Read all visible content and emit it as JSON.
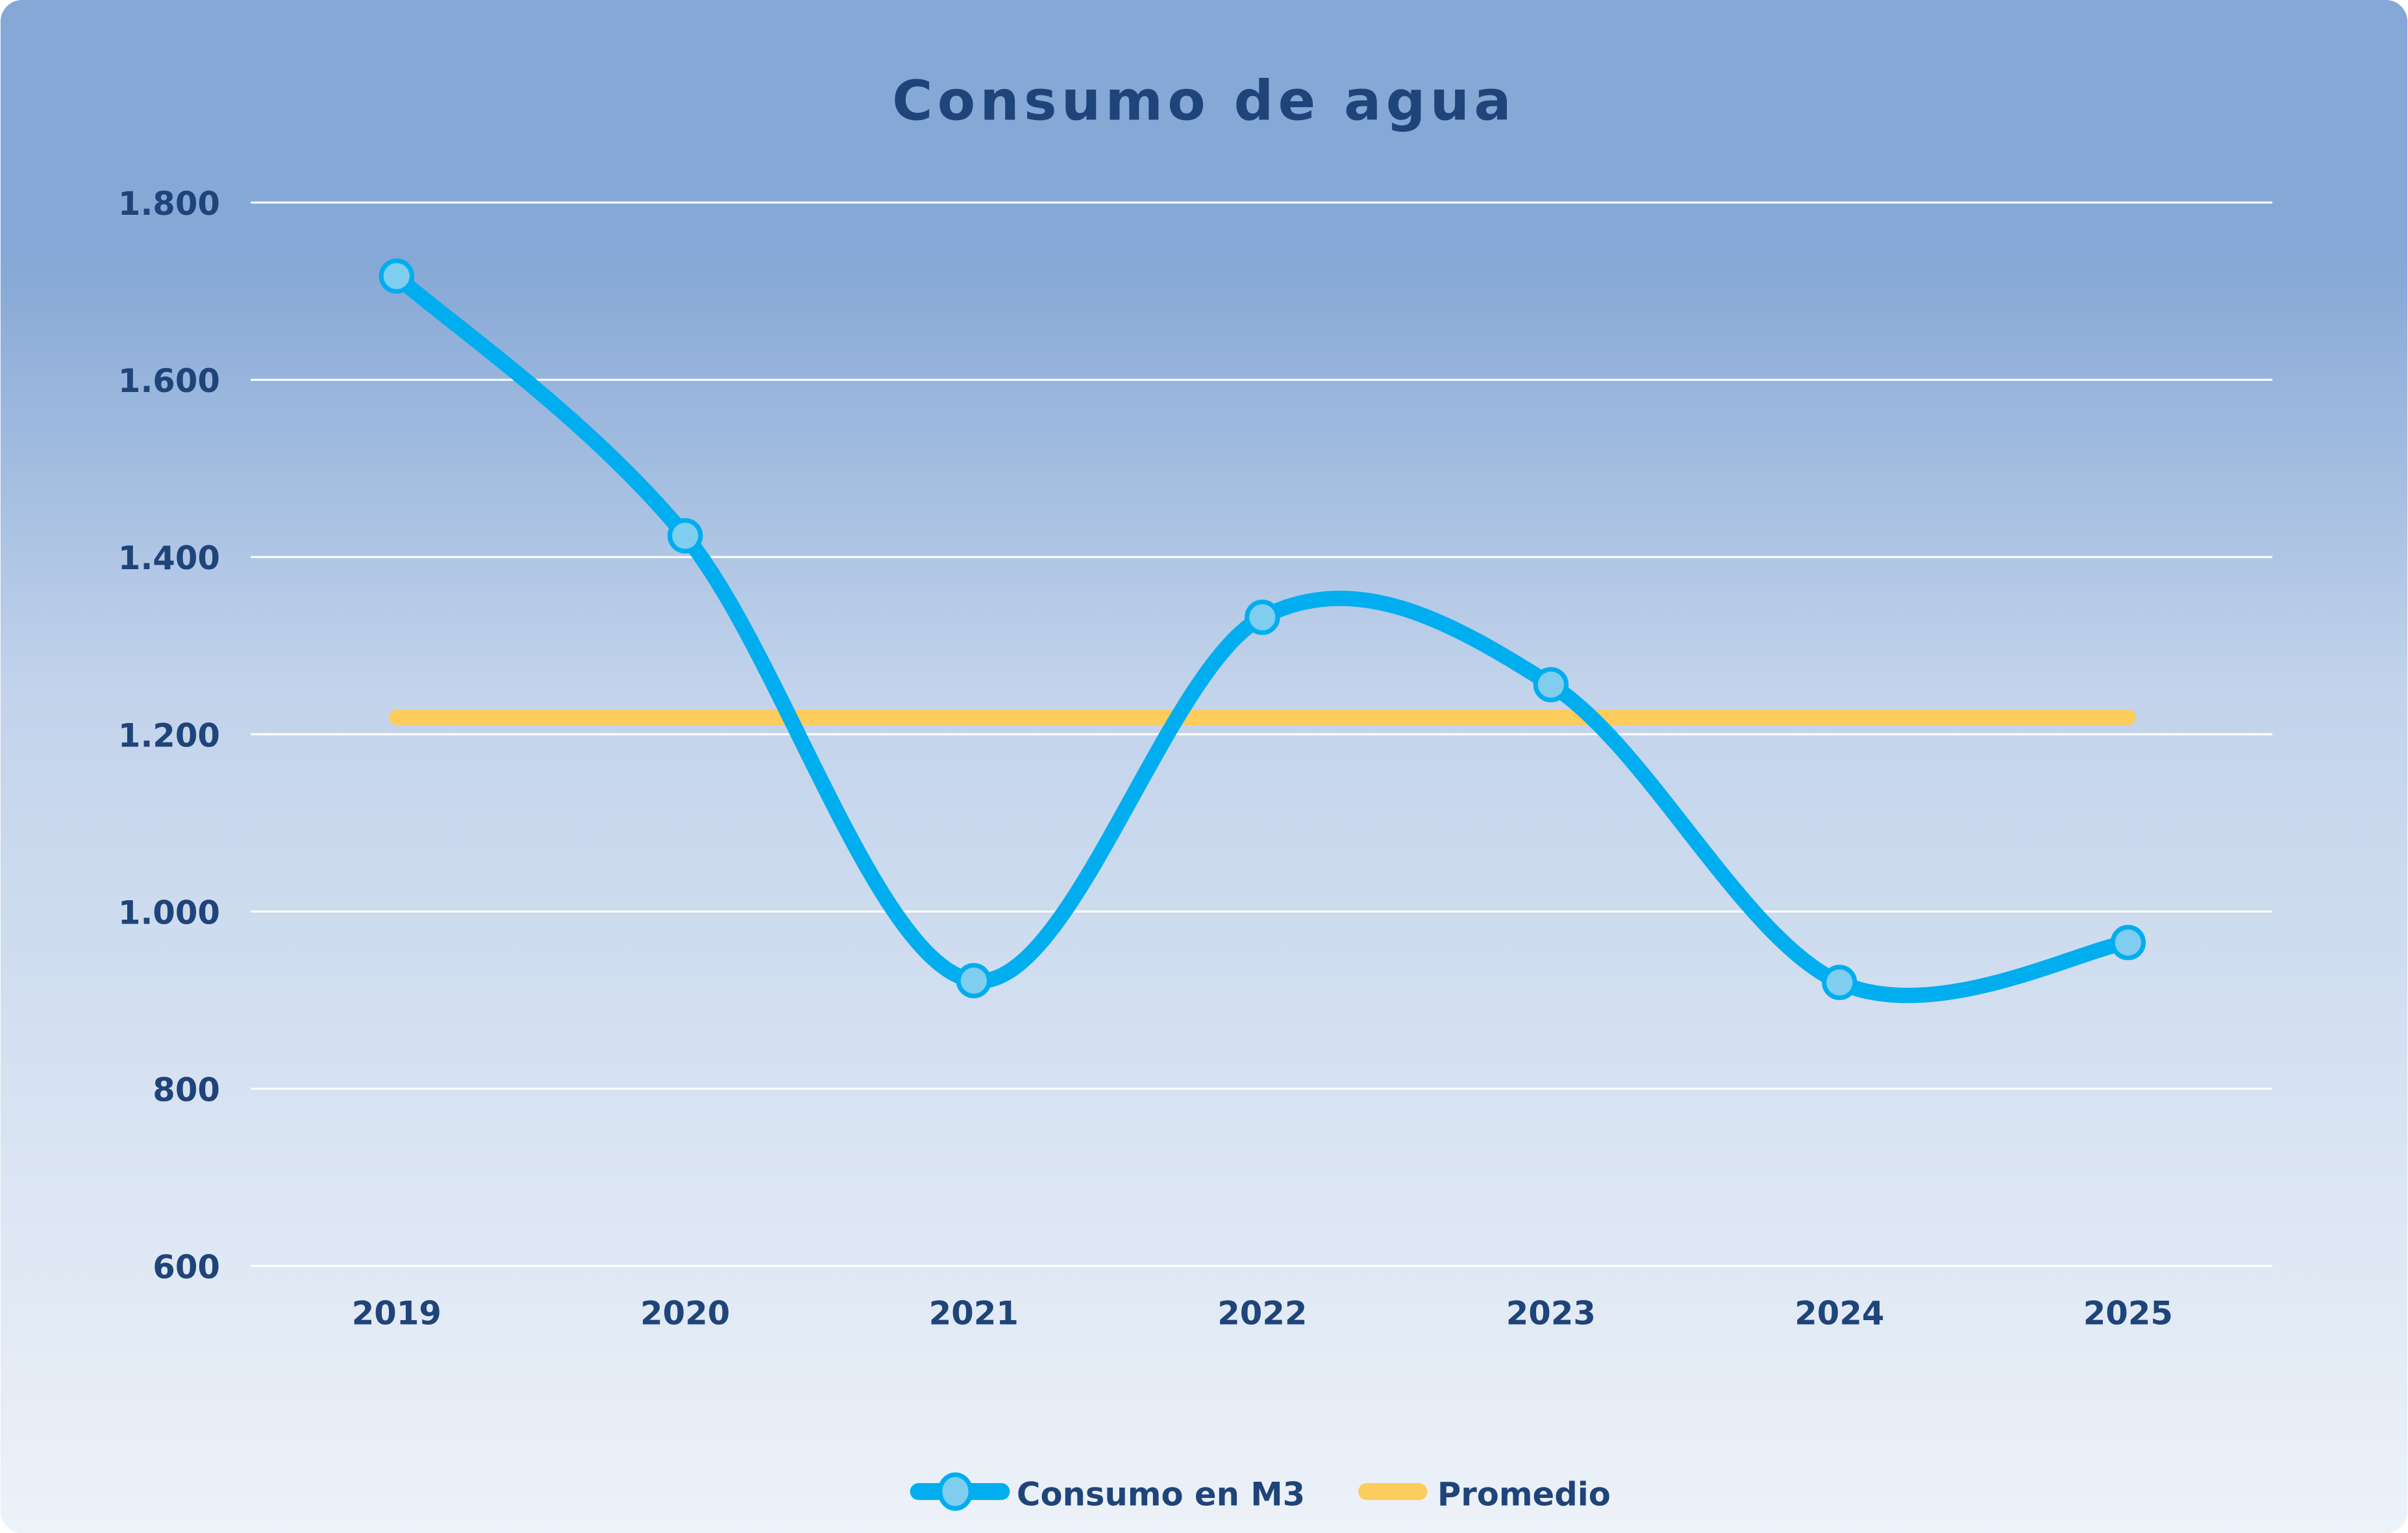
{
  "chart_data": {
    "type": "line",
    "title": "Consumo de agua",
    "xlabel": "",
    "ylabel": "",
    "categories": [
      "2019",
      "2020",
      "2021",
      "2022",
      "2023",
      "2024",
      "2025"
    ],
    "ylim": [
      600,
      1800
    ],
    "yticks": [
      600,
      800,
      1000,
      1200,
      1400,
      1600,
      1800
    ],
    "ytick_labels": [
      "600",
      "800",
      "1.000",
      "1.200",
      "1.400",
      "1.600",
      "1.800"
    ],
    "grid": true,
    "legend_placement": "bottom",
    "series": [
      {
        "name": "Consumo en M3",
        "values": [
          1717,
          1424,
          922,
          1332,
          1256,
          920,
          965
        ],
        "color": "#00aeef",
        "marker_fill": "#7fcdef",
        "smooth": true
      },
      {
        "name": "Promedio",
        "values": [
          1219,
          1219,
          1219,
          1219,
          1219,
          1219,
          1219
        ],
        "color": "#fccc5c"
      }
    ]
  },
  "colors": {
    "title": "#1f4479",
    "background_top": "#85a8d6",
    "background_bottom": "#edf2f9",
    "grid": "#ffffff"
  }
}
